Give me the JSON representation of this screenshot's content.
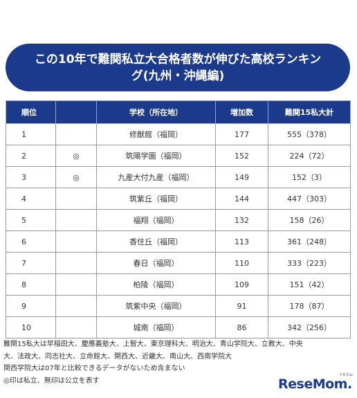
{
  "title": "この10年で難関私立大合格者数が伸びた高校ランキング(九州・沖縄編)",
  "table": {
    "headers": [
      "順位",
      "",
      "学校（所在地）",
      "増加数",
      "難関15私大計"
    ],
    "rows": [
      {
        "rank": "1",
        "mark": "",
        "school": "修猷館（福岡）",
        "increase": "177",
        "total": "555（378）"
      },
      {
        "rank": "2",
        "mark": "◎",
        "school": "筑陽学園（福岡）",
        "increase": "152",
        "total": "224（72）"
      },
      {
        "rank": "3",
        "mark": "◎",
        "school": "九産大付九産（福岡）",
        "increase": "149",
        "total": "152（3）"
      },
      {
        "rank": "4",
        "mark": "",
        "school": "筑紫丘（福岡）",
        "increase": "144",
        "total": "447（303）"
      },
      {
        "rank": "5",
        "mark": "",
        "school": "福翔（福岡）",
        "increase": "132",
        "total": "158（26）"
      },
      {
        "rank": "6",
        "mark": "",
        "school": "香住丘（福岡）",
        "increase": "113",
        "total": "361（248）"
      },
      {
        "rank": "7",
        "mark": "",
        "school": "春日（福岡）",
        "increase": "110",
        "total": "333（223）"
      },
      {
        "rank": "8",
        "mark": "",
        "school": "柏陵（福岡）",
        "increase": "109",
        "total": "151（42）"
      },
      {
        "rank": "9",
        "mark": "",
        "school": "筑紫中央（福岡）",
        "increase": "91",
        "total": "178（87）"
      },
      {
        "rank": "10",
        "mark": "",
        "school": "城南（福岡）",
        "increase": "86",
        "total": "342（256）"
      }
    ]
  },
  "notes": [
    "難関15私大は早稲田大、慶應義塾大、上智大、東京理科大、明治大、青山学院大、立教大、中央",
    "大、法政大、同志社大、立命館大、関西大、近畿大、南山大、西南学院大",
    "関西学院大は07年と比較できるデータがないため含まない",
    "◎印は私立、無印は公立を表す"
  ],
  "logo": {
    "text": "ReseMom.",
    "sub": "リセマム"
  },
  "colors": {
    "header_bg": "#1b3a8c",
    "header_text": "#ffffff",
    "border": "#9a9a9a"
  }
}
